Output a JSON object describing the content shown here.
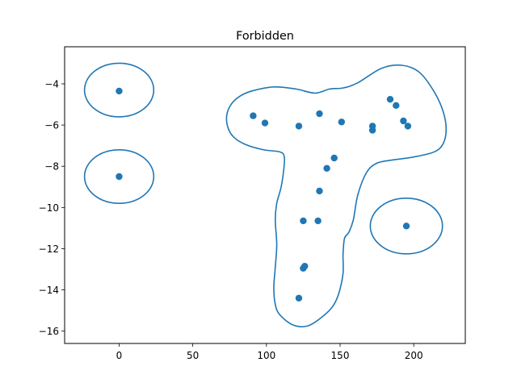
{
  "chart_data": {
    "type": "scatter",
    "title": "Forbidden",
    "xlabel": "",
    "ylabel": "",
    "xlim": [
      -37,
      235
    ],
    "ylim": [
      -16.6,
      -2.2
    ],
    "xticks": [
      0,
      50,
      100,
      150,
      200
    ],
    "yticks": [
      -4,
      -6,
      -8,
      -10,
      -12,
      -14,
      -16
    ],
    "grid": false,
    "colors": {
      "points": "#1f77b4",
      "boundary": "#1f77b4"
    },
    "points": [
      {
        "x": 0,
        "y": -4.35
      },
      {
        "x": 0,
        "y": -8.5
      },
      {
        "x": 91,
        "y": -5.55
      },
      {
        "x": 99,
        "y": -5.9
      },
      {
        "x": 122,
        "y": -6.05
      },
      {
        "x": 136,
        "y": -5.45
      },
      {
        "x": 151,
        "y": -5.85
      },
      {
        "x": 172,
        "y": -6.05
      },
      {
        "x": 172,
        "y": -6.25
      },
      {
        "x": 184,
        "y": -4.75
      },
      {
        "x": 188,
        "y": -5.05
      },
      {
        "x": 193,
        "y": -5.8
      },
      {
        "x": 196,
        "y": -6.05
      },
      {
        "x": 146,
        "y": -7.6
      },
      {
        "x": 141,
        "y": -8.1
      },
      {
        "x": 136,
        "y": -9.2
      },
      {
        "x": 125,
        "y": -10.65
      },
      {
        "x": 135,
        "y": -10.65
      },
      {
        "x": 195,
        "y": -10.9
      },
      {
        "x": 126,
        "y": -12.85
      },
      {
        "x": 125,
        "y": -12.95
      },
      {
        "x": 122,
        "y": -14.4
      }
    ],
    "boundaries": [
      {
        "shape": "ellipse",
        "cx": 0,
        "cy": -4.3,
        "rx": 23.5,
        "ry": 1.3
      },
      {
        "shape": "ellipse",
        "cx": 0,
        "cy": -8.5,
        "rx": 23.5,
        "ry": 1.3
      },
      {
        "shape": "ellipse",
        "cx": 195,
        "cy": -10.9,
        "rx": 24.5,
        "ry": 1.35
      },
      {
        "shape": "path",
        "points": [
          [
            90,
            -4.35
          ],
          [
            105,
            -4.15
          ],
          [
            120,
            -4.25
          ],
          [
            133,
            -4.45
          ],
          [
            143,
            -4.25
          ],
          [
            152,
            -4.2
          ],
          [
            162,
            -3.95
          ],
          [
            178,
            -3.25
          ],
          [
            192,
            -3.1
          ],
          [
            204,
            -3.45
          ],
          [
            214,
            -4.4
          ],
          [
            220,
            -5.35
          ],
          [
            222,
            -6.2
          ],
          [
            220,
            -6.9
          ],
          [
            214,
            -7.3
          ],
          [
            200,
            -7.55
          ],
          [
            185,
            -7.7
          ],
          [
            175,
            -7.85
          ],
          [
            168,
            -8.3
          ],
          [
            162,
            -9.4
          ],
          [
            159,
            -10.6
          ],
          [
            156,
            -11.2
          ],
          [
            153,
            -11.5
          ],
          [
            152,
            -12.3
          ],
          [
            152,
            -13.2
          ],
          [
            149,
            -14.2
          ],
          [
            145,
            -14.8
          ],
          [
            138,
            -15.3
          ],
          [
            128,
            -15.75
          ],
          [
            118,
            -15.7
          ],
          [
            109,
            -15.2
          ],
          [
            106,
            -14.7
          ],
          [
            105,
            -13.9
          ],
          [
            106,
            -12.9
          ],
          [
            107,
            -11.8
          ],
          [
            106,
            -10.6
          ],
          [
            107,
            -9.8
          ],
          [
            110,
            -9.0
          ],
          [
            112,
            -8.0
          ],
          [
            112,
            -7.5
          ],
          [
            109,
            -7.3
          ],
          [
            98,
            -7.2
          ],
          [
            86,
            -6.95
          ],
          [
            78,
            -6.6
          ],
          [
            74,
            -6.15
          ],
          [
            73,
            -5.55
          ],
          [
            76,
            -5.0
          ],
          [
            82,
            -4.6
          ],
          [
            90,
            -4.35
          ]
        ]
      }
    ]
  }
}
